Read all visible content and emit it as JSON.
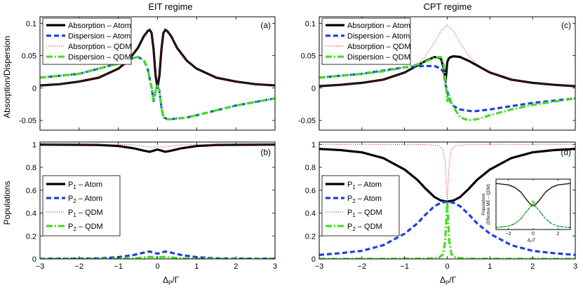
{
  "chart_data": [
    {
      "panel": "a",
      "type": "line",
      "title": "EIT regime",
      "panel_label": "(a)",
      "xlabel": "",
      "ylabel": "Absorption/Dispersion",
      "xlim": [
        -3,
        3
      ],
      "ylim": [
        -0.065,
        0.11
      ],
      "xticks": [
        -3,
        -2,
        -1,
        0,
        1,
        2,
        3
      ],
      "xticklabels": [
        "",
        "",
        "",
        "",
        "",
        "",
        ""
      ],
      "yticks": [
        -0.05,
        0,
        0.05,
        0.1
      ],
      "yticklabels": [
        "-0.05",
        "0",
        "0.05",
        "0.1"
      ],
      "legend_position": "top-left",
      "series": [
        {
          "name": "Absorption – Atom",
          "style": "solid",
          "color": "#000000",
          "x": [
            -3,
            -2.5,
            -2,
            -1.5,
            -1,
            -0.75,
            -0.5,
            -0.35,
            -0.25,
            -0.2,
            -0.15,
            -0.1,
            -0.05,
            0,
            0.05,
            0.1,
            0.15,
            0.2,
            0.25,
            0.35,
            0.5,
            0.75,
            1,
            1.5,
            2,
            2.5,
            3
          ],
          "y": [
            0.004,
            0.006,
            0.01,
            0.016,
            0.03,
            0.042,
            0.062,
            0.08,
            0.088,
            0.09,
            0.085,
            0.06,
            0.02,
            0,
            0.02,
            0.06,
            0.085,
            0.09,
            0.088,
            0.08,
            0.062,
            0.042,
            0.03,
            0.016,
            0.01,
            0.006,
            0.004
          ]
        },
        {
          "name": "Dispersion – Atom",
          "style": "dashed",
          "color": "#1f3fe0",
          "x": [
            -3,
            -2,
            -1,
            -0.7,
            -0.5,
            -0.35,
            -0.25,
            -0.15,
            -0.1,
            -0.05,
            0,
            0.05,
            0.1,
            0.15,
            0.25,
            0.35,
            0.5,
            0.7,
            1,
            2,
            3
          ],
          "y": [
            0.016,
            0.022,
            0.038,
            0.045,
            0.048,
            0.043,
            0.03,
            0.0,
            -0.02,
            -0.005,
            0.005,
            -0.005,
            -0.03,
            -0.045,
            -0.048,
            -0.048,
            -0.047,
            -0.046,
            -0.042,
            -0.027,
            -0.016
          ]
        },
        {
          "name": "Absorption – QDM",
          "style": "dotted",
          "color": "#e0392b",
          "x": [
            -3,
            -2.5,
            -2,
            -1.5,
            -1,
            -0.75,
            -0.5,
            -0.35,
            -0.25,
            -0.2,
            -0.15,
            -0.1,
            -0.05,
            0,
            0.05,
            0.1,
            0.15,
            0.2,
            0.25,
            0.35,
            0.5,
            0.75,
            1,
            1.5,
            2,
            2.5,
            3
          ],
          "y": [
            0.004,
            0.006,
            0.01,
            0.016,
            0.03,
            0.042,
            0.062,
            0.08,
            0.088,
            0.092,
            0.087,
            0.062,
            0.022,
            0.002,
            0.022,
            0.062,
            0.087,
            0.092,
            0.088,
            0.08,
            0.062,
            0.042,
            0.03,
            0.016,
            0.01,
            0.006,
            0.004
          ]
        },
        {
          "name": "Dispersion – QDM",
          "style": "dashdot",
          "color": "#44dd22",
          "x": [
            -3,
            -2,
            -1,
            -0.7,
            -0.5,
            -0.35,
            -0.25,
            -0.15,
            -0.1,
            -0.05,
            0,
            0.05,
            0.1,
            0.15,
            0.25,
            0.35,
            0.5,
            0.7,
            1,
            2,
            3
          ],
          "y": [
            0.016,
            0.022,
            0.038,
            0.045,
            0.048,
            0.043,
            0.03,
            0.0,
            -0.02,
            -0.005,
            0.005,
            -0.005,
            -0.03,
            -0.045,
            -0.048,
            -0.048,
            -0.047,
            -0.046,
            -0.042,
            -0.027,
            -0.016
          ]
        }
      ]
    },
    {
      "panel": "c",
      "type": "line",
      "title": "CPT regime",
      "panel_label": "(c)",
      "xlabel": "",
      "ylabel": "",
      "xlim": [
        -3,
        3
      ],
      "ylim": [
        -0.065,
        0.11
      ],
      "xticks": [
        -3,
        -2,
        -1,
        0,
        1,
        2,
        3
      ],
      "xticklabels": [
        "",
        "",
        "",
        "",
        "",
        "",
        ""
      ],
      "yticks": [
        -0.05,
        0,
        0.05,
        0.1
      ],
      "yticklabels": [
        "-0.05",
        "0",
        "0.05",
        "0.1"
      ],
      "legend_position": "top-left",
      "series": [
        {
          "name": "Absorption – Atom",
          "style": "solid",
          "color": "#000000",
          "x": [
            -3,
            -2.5,
            -2,
            -1.5,
            -1,
            -0.5,
            -0.3,
            -0.15,
            -0.08,
            -0.04,
            0,
            0.04,
            0.08,
            0.15,
            0.3,
            0.5,
            1,
            1.5,
            2,
            2.5,
            3
          ],
          "y": [
            0.003,
            0.005,
            0.008,
            0.013,
            0.024,
            0.042,
            0.048,
            0.046,
            0.03,
            0.01,
            0.04,
            0.046,
            0.048,
            0.049,
            0.048,
            0.042,
            0.024,
            0.013,
            0.008,
            0.005,
            0.003
          ]
        },
        {
          "name": "Dispersion – Atom",
          "style": "dashed",
          "color": "#1f3fe0",
          "x": [
            -3,
            -2,
            -1.5,
            -1,
            -0.6,
            -0.3,
            -0.15,
            -0.08,
            -0.04,
            0,
            0.04,
            0.08,
            0.15,
            0.3,
            0.6,
            1,
            1.5,
            2,
            3
          ],
          "y": [
            0.016,
            0.022,
            0.027,
            0.032,
            0.034,
            0.034,
            0.03,
            0.024,
            0.005,
            -0.005,
            -0.015,
            -0.022,
            -0.028,
            -0.033,
            -0.036,
            -0.033,
            -0.028,
            -0.023,
            -0.016
          ]
        },
        {
          "name": "Absorption – QDM",
          "style": "dotted",
          "color": "#e0392b",
          "x": [
            -3,
            -2.5,
            -2,
            -1.5,
            -1,
            -0.7,
            -0.5,
            -0.3,
            -0.15,
            0,
            0.15,
            0.3,
            0.5,
            0.7,
            1,
            1.5,
            2,
            2.5,
            3
          ],
          "y": [
            0.003,
            0.005,
            0.008,
            0.013,
            0.024,
            0.037,
            0.05,
            0.07,
            0.088,
            0.097,
            0.088,
            0.07,
            0.05,
            0.037,
            0.024,
            0.013,
            0.008,
            0.005,
            0.003
          ]
        },
        {
          "name": "Dispersion – QDM",
          "style": "dashdot",
          "color": "#44dd22",
          "x": [
            -3,
            -2,
            -1.5,
            -1,
            -0.6,
            -0.3,
            -0.15,
            -0.08,
            -0.04,
            0,
            0.04,
            0.08,
            0.15,
            0.3,
            0.5,
            0.7,
            1,
            1.5,
            2,
            3
          ],
          "y": [
            0.016,
            0.022,
            0.026,
            0.032,
            0.038,
            0.047,
            0.048,
            0.035,
            0.01,
            -0.02,
            -0.01,
            -0.02,
            -0.03,
            -0.045,
            -0.05,
            -0.048,
            -0.042,
            -0.033,
            -0.026,
            -0.016
          ]
        }
      ]
    },
    {
      "panel": "b",
      "type": "line",
      "title": "",
      "panel_label": "(b)",
      "xlabel": "Δ_P/Γ",
      "ylabel": "Populations",
      "xlim": [
        -3,
        3
      ],
      "ylim": [
        0,
        1.02
      ],
      "xticks": [
        -3,
        -2,
        -1,
        0,
        1,
        2,
        3
      ],
      "xticklabels": [
        "−3",
        "−2",
        "−1",
        "0",
        "1",
        "2",
        "3"
      ],
      "yticks": [
        0,
        0.2,
        0.4,
        0.6,
        0.8,
        1
      ],
      "yticklabels": [
        "0",
        "0.2",
        "0.4",
        "0.6",
        "0.8",
        "1"
      ],
      "legend_position": "center-left",
      "series": [
        {
          "name": "P1 – Atom",
          "style": "solid",
          "color": "#000000",
          "x": [
            -3,
            -1.5,
            -1,
            -0.6,
            -0.35,
            -0.2,
            -0.1,
            0,
            0.1,
            0.2,
            0.35,
            0.6,
            1,
            1.5,
            3
          ],
          "y": [
            0.998,
            0.995,
            0.985,
            0.965,
            0.945,
            0.935,
            0.945,
            0.955,
            0.945,
            0.935,
            0.945,
            0.965,
            0.985,
            0.995,
            0.998
          ]
        },
        {
          "name": "P2 – Atom",
          "style": "dashed",
          "color": "#1f3fe0",
          "x": [
            -3,
            -1.5,
            -1,
            -0.6,
            -0.35,
            -0.2,
            -0.1,
            0,
            0.1,
            0.2,
            0.35,
            0.6,
            1,
            1.5,
            3
          ],
          "y": [
            0.002,
            0.005,
            0.015,
            0.035,
            0.055,
            0.065,
            0.055,
            0.045,
            0.055,
            0.065,
            0.055,
            0.035,
            0.015,
            0.005,
            0.002
          ]
        },
        {
          "name": "P1 – QDM",
          "style": "dotted",
          "color": "#e0392b",
          "x": [
            -3,
            -1.5,
            -1,
            -0.6,
            -0.35,
            -0.2,
            -0.1,
            0,
            0.1,
            0.2,
            0.35,
            0.6,
            1,
            1.5,
            3
          ],
          "y": [
            1.0,
            1.0,
            0.998,
            0.995,
            0.985,
            0.975,
            0.978,
            0.98,
            0.978,
            0.975,
            0.985,
            0.995,
            0.998,
            1.0,
            1.0
          ]
        },
        {
          "name": "P2 – QDM",
          "style": "dashdot",
          "color": "#44dd22",
          "x": [
            -3,
            -1.5,
            -1,
            -0.6,
            -0.35,
            -0.2,
            -0.1,
            0,
            0.1,
            0.2,
            0.35,
            0.6,
            1,
            1.5,
            3
          ],
          "y": [
            0.0,
            0.0,
            0.002,
            0.005,
            0.012,
            0.018,
            0.016,
            0.014,
            0.016,
            0.018,
            0.012,
            0.005,
            0.002,
            0.0,
            0.0
          ]
        }
      ]
    },
    {
      "panel": "d",
      "type": "line",
      "title": "",
      "panel_label": "(d)",
      "xlabel": "Δ_P/Γ",
      "ylabel": "",
      "xlim": [
        -3,
        3
      ],
      "ylim": [
        0,
        1.02
      ],
      "xticks": [
        -3,
        -2,
        -1,
        0,
        1,
        2,
        3
      ],
      "xticklabels": [
        "−3",
        "−2",
        "−1",
        "0",
        "1",
        "2",
        "3"
      ],
      "yticks": [
        0,
        0.2,
        0.4,
        0.6,
        0.8,
        1
      ],
      "yticklabels": [
        "0",
        "0.2",
        "0.4",
        "0.6",
        "0.8",
        "1"
      ],
      "legend_position": "center-left",
      "series": [
        {
          "name": "P1 – Atom",
          "style": "solid",
          "color": "#000000",
          "x": [
            -3,
            -2.5,
            -2,
            -1.5,
            -1,
            -0.7,
            -0.5,
            -0.3,
            -0.15,
            0,
            0.15,
            0.3,
            0.5,
            0.7,
            1,
            1.5,
            2,
            2.5,
            3
          ],
          "y": [
            0.96,
            0.95,
            0.93,
            0.88,
            0.78,
            0.69,
            0.61,
            0.54,
            0.51,
            0.5,
            0.51,
            0.54,
            0.61,
            0.69,
            0.78,
            0.88,
            0.93,
            0.95,
            0.96
          ]
        },
        {
          "name": "P2 – Atom",
          "style": "dashed",
          "color": "#1f3fe0",
          "x": [
            -3,
            -2.5,
            -2,
            -1.5,
            -1,
            -0.7,
            -0.5,
            -0.3,
            -0.15,
            0,
            0.15,
            0.3,
            0.5,
            0.7,
            1,
            1.5,
            2,
            2.5,
            3
          ],
          "y": [
            0.035,
            0.05,
            0.07,
            0.12,
            0.22,
            0.31,
            0.39,
            0.46,
            0.49,
            0.5,
            0.49,
            0.46,
            0.39,
            0.31,
            0.22,
            0.12,
            0.07,
            0.05,
            0.035
          ]
        },
        {
          "name": "P1 – QDM",
          "style": "dotted",
          "color": "#e0392b",
          "x": [
            -3,
            -0.5,
            -0.2,
            -0.1,
            -0.05,
            -0.02,
            0,
            0.02,
            0.05,
            0.1,
            0.2,
            0.5,
            3
          ],
          "y": [
            1.0,
            0.998,
            0.99,
            0.96,
            0.85,
            0.65,
            0.5,
            0.65,
            0.85,
            0.96,
            0.99,
            0.998,
            1.0
          ]
        },
        {
          "name": "P2 – QDM",
          "style": "dashdot",
          "color": "#44dd22",
          "x": [
            -3,
            -0.5,
            -0.2,
            -0.1,
            -0.05,
            -0.02,
            0,
            0.02,
            0.05,
            0.1,
            0.2,
            0.5,
            3
          ],
          "y": [
            0.0,
            0.002,
            0.01,
            0.04,
            0.15,
            0.35,
            0.5,
            0.35,
            0.15,
            0.04,
            0.01,
            0.002,
            0.0
          ]
        }
      ]
    },
    {
      "panel": "d-inset",
      "type": "line",
      "title": "",
      "panel_label": "",
      "xlabel": "Δ_P/Γ",
      "ylabel": "Populations (Effective ME – QDM)",
      "xlim": [
        -3,
        3
      ],
      "ylim": [
        0,
        1.05
      ],
      "xticks": [
        -2,
        0,
        2
      ],
      "xticklabels": [
        "−2",
        "0",
        "2"
      ],
      "yticks": [],
      "yticklabels": [],
      "legend_position": "none",
      "series": [
        {
          "name": "P1",
          "style": "solid",
          "color": "#000000",
          "x": [
            -3,
            -2,
            -1.5,
            -1,
            -0.5,
            -0.2,
            0,
            0.2,
            0.5,
            1,
            1.5,
            2,
            3
          ],
          "y": [
            0.96,
            0.93,
            0.88,
            0.78,
            0.61,
            0.52,
            0.5,
            0.52,
            0.61,
            0.78,
            0.88,
            0.93,
            0.96
          ]
        },
        {
          "name": "P1 – QDM",
          "style": "dotted",
          "color": "#e0392b",
          "x": [
            -3,
            -2,
            -1.5,
            -1,
            -0.5,
            -0.2,
            0,
            0.2,
            0.5,
            1,
            1.5,
            2,
            3
          ],
          "y": [
            0.96,
            0.93,
            0.88,
            0.78,
            0.61,
            0.52,
            0.5,
            0.52,
            0.61,
            0.78,
            0.88,
            0.93,
            0.96
          ]
        },
        {
          "name": "P2",
          "style": "dashed",
          "color": "#1f3fe0",
          "x": [
            -3,
            -2,
            -1.5,
            -1,
            -0.5,
            -0.2,
            0,
            0.2,
            0.5,
            1,
            1.5,
            2,
            3
          ],
          "y": [
            0.04,
            0.07,
            0.12,
            0.22,
            0.39,
            0.48,
            0.5,
            0.48,
            0.39,
            0.22,
            0.12,
            0.07,
            0.04
          ]
        },
        {
          "name": "P2 – QDM",
          "style": "dashdot",
          "color": "#44dd22",
          "x": [
            -3,
            -2,
            -1.5,
            -1,
            -0.5,
            -0.2,
            -0.05,
            0,
            0.05,
            0.2,
            0.5,
            1,
            1.5,
            2,
            3
          ],
          "y": [
            0.04,
            0.07,
            0.12,
            0.22,
            0.39,
            0.48,
            0.6,
            0.5,
            0.6,
            0.48,
            0.39,
            0.22,
            0.12,
            0.07,
            0.04
          ]
        }
      ]
    }
  ]
}
